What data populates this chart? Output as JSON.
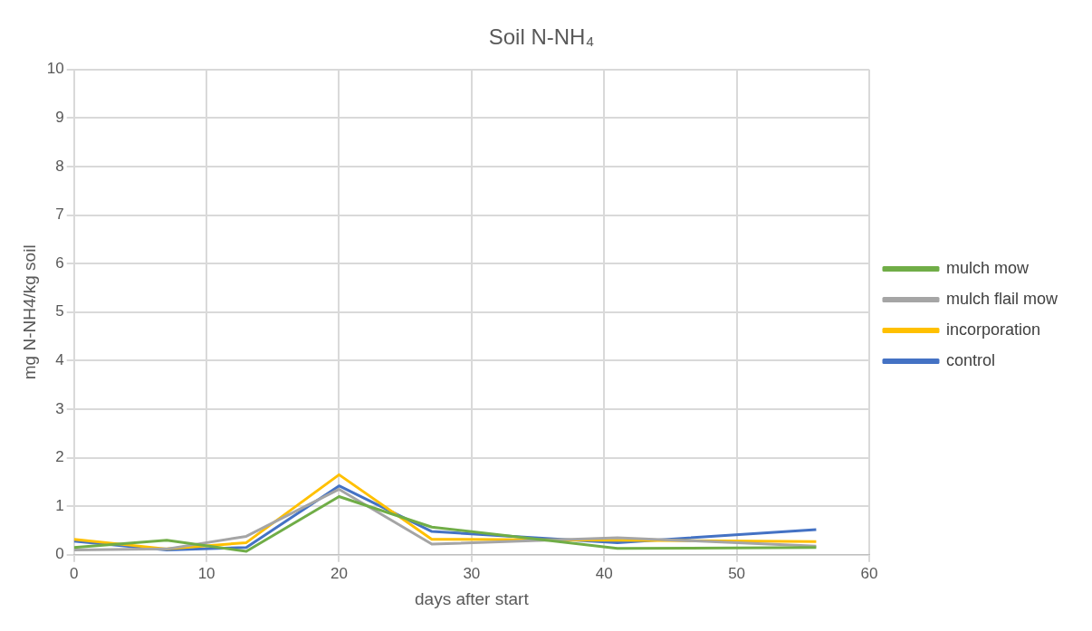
{
  "chart_data": {
    "type": "line",
    "title": "Soil N-NH₄",
    "xlabel": "days after start",
    "ylabel": "mg N-NH4/kg soil",
    "x": [
      0,
      7,
      13,
      20,
      27,
      41,
      56
    ],
    "series": [
      {
        "name": "mulch mow",
        "color": "#70ad47",
        "values": [
          0.15,
          0.3,
          0.07,
          1.2,
          0.57,
          0.13,
          0.15
        ]
      },
      {
        "name": "mulch flail mow",
        "color": "#a5a5a5",
        "values": [
          0.1,
          0.12,
          0.38,
          1.35,
          0.22,
          0.35,
          0.18
        ]
      },
      {
        "name": "incorporation",
        "color": "#ffc000",
        "values": [
          0.32,
          0.12,
          0.25,
          1.65,
          0.32,
          0.3,
          0.27
        ]
      },
      {
        "name": "control",
        "color": "#4472c4",
        "values": [
          0.28,
          0.1,
          0.15,
          1.42,
          0.48,
          0.25,
          0.52
        ]
      }
    ],
    "xlim": [
      0,
      60
    ],
    "xticks": [
      0,
      10,
      20,
      30,
      40,
      50,
      60
    ],
    "ylim": [
      0,
      10
    ],
    "yticks": [
      0,
      1,
      2,
      3,
      4,
      5,
      6,
      7,
      8,
      9,
      10
    ],
    "grid": true,
    "legend": "right",
    "marker": "none",
    "line_style": "solid"
  }
}
